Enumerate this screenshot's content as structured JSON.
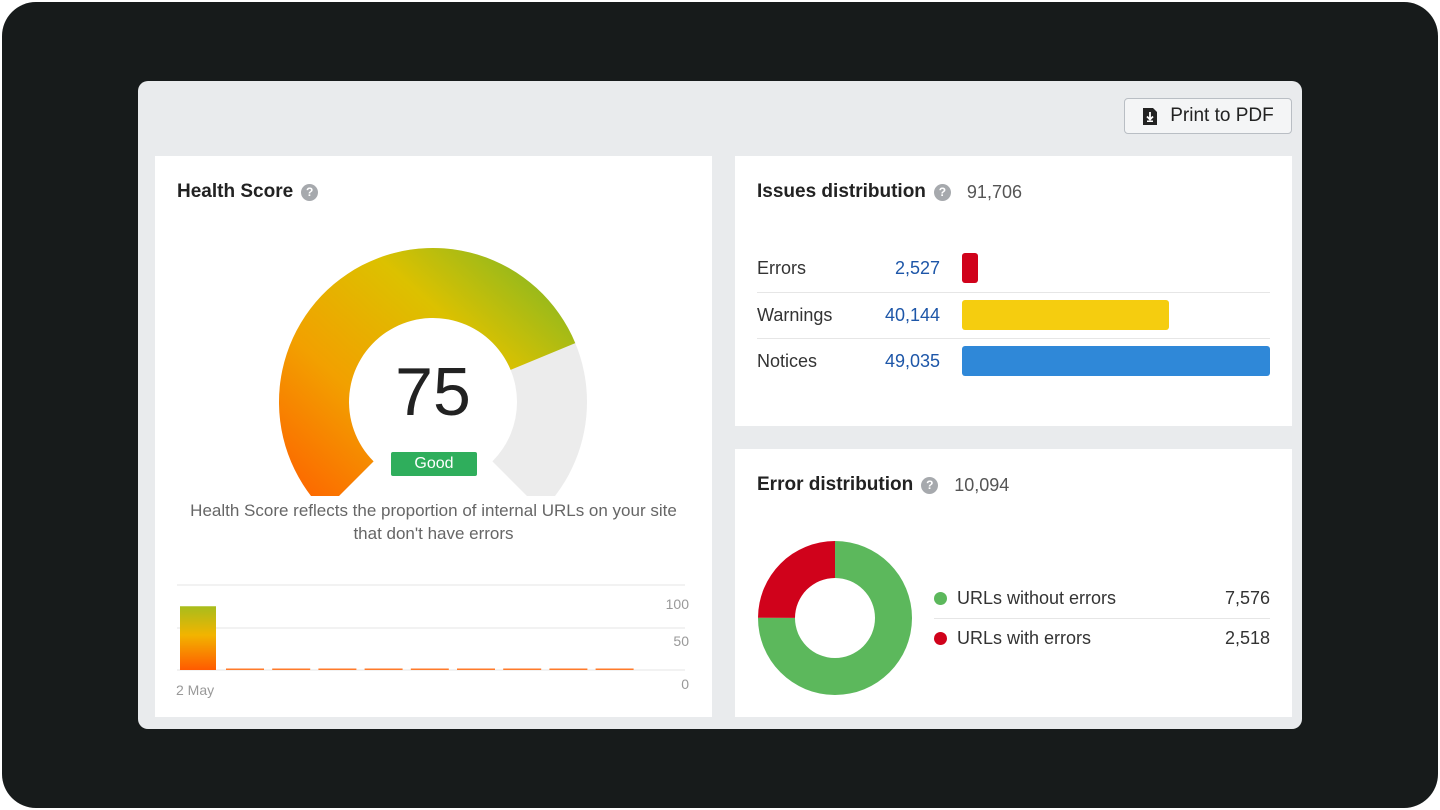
{
  "toolbar": {
    "print_label": "Print to PDF"
  },
  "health": {
    "title": "Health Score",
    "help": "?",
    "score": "75",
    "score_value": 75,
    "status": "Good",
    "description": "Health Score reflects the proportion of internal URLs on your site that don't have errors",
    "history": {
      "date_label": "2 May",
      "y_ticks": [
        "100",
        "50",
        "0"
      ],
      "values": [
        75,
        0,
        0,
        0,
        0,
        0,
        0,
        0,
        0,
        0
      ]
    }
  },
  "issues": {
    "title": "Issues distribution",
    "help": "?",
    "total": "91,706",
    "rows": [
      {
        "label": "Errors",
        "count": "2,527",
        "value": 2527,
        "color": "#d0021b"
      },
      {
        "label": "Warnings",
        "count": "40,144",
        "value": 40144,
        "color": "#f5cd0f"
      },
      {
        "label": "Notices",
        "count": "49,035",
        "value": 49035,
        "color": "#2f88d8"
      }
    ]
  },
  "errors": {
    "title": "Error distribution",
    "help": "?",
    "total": "10,094",
    "items": [
      {
        "label": "URLs without errors",
        "count": "7,576",
        "value": 7576,
        "color": "#5cb85c"
      },
      {
        "label": "URLs with errors",
        "count": "2,518",
        "value": 2518,
        "color": "#d0021b"
      }
    ]
  }
}
